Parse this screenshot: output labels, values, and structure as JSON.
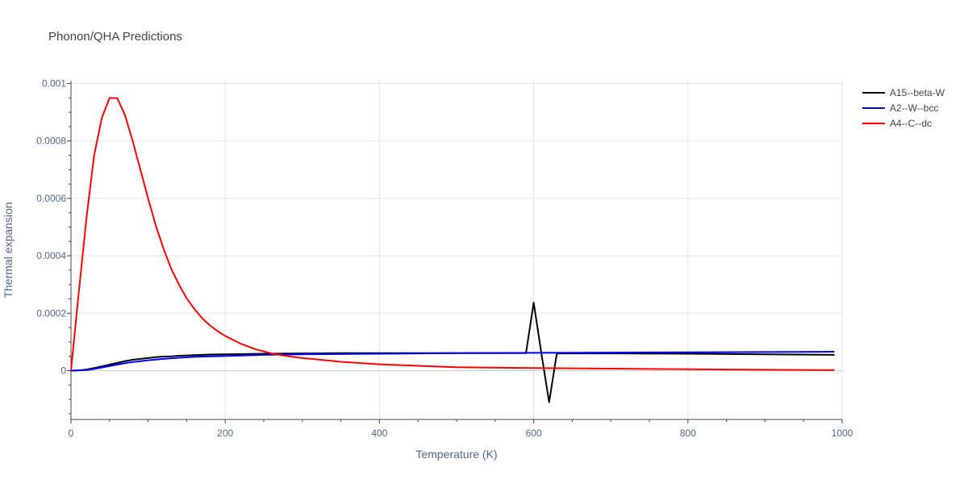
{
  "chart_data": {
    "type": "line",
    "title": "Phonon/QHA Predictions",
    "xlabel": "Temperature (K)",
    "ylabel": "Thermal expansion",
    "xlim": [
      0,
      1000
    ],
    "ylim": [
      -0.00017,
      0.00101
    ],
    "x_ticks": [
      0,
      200,
      400,
      600,
      800,
      1000
    ],
    "x_tick_labels": [
      "0",
      "200",
      "400",
      "600",
      "800",
      "1000"
    ],
    "y_ticks": [
      0,
      0.0002,
      0.0004,
      0.0006,
      0.0008,
      0.001
    ],
    "y_tick_labels": [
      "0",
      "0.0002",
      "0.0004",
      "0.0006",
      "0.0008",
      "0.001"
    ],
    "grid": true,
    "legend_position": "top-right",
    "series": [
      {
        "name": "A15--beta-W",
        "color": "#000000",
        "x": [
          0,
          10,
          20,
          30,
          40,
          50,
          60,
          70,
          80,
          90,
          100,
          110,
          120,
          130,
          140,
          150,
          160,
          170,
          180,
          200,
          250,
          300,
          350,
          400,
          450,
          500,
          550,
          590,
          600,
          610,
          620,
          630,
          640,
          650,
          700,
          800,
          900,
          990
        ],
        "y": [
          0,
          1e-06,
          4e-06,
          9e-06,
          1.5e-05,
          2.1e-05,
          2.7e-05,
          3.3e-05,
          3.8e-05,
          4.1e-05,
          4.4e-05,
          4.7e-05,
          4.9e-05,
          5e-05,
          5.2e-05,
          5.3e-05,
          5.4e-05,
          5.5e-05,
          5.6e-05,
          5.7e-05,
          5.9e-05,
          6e-05,
          6.1e-05,
          6.1e-05,
          6.1e-05,
          6.1e-05,
          6.1e-05,
          6.1e-05,
          0.000237,
          6e-05,
          -0.00011,
          6e-05,
          6e-05,
          6e-05,
          6e-05,
          5.9e-05,
          5.7e-05,
          5.5e-05
        ]
      },
      {
        "name": "A2--W--bcc",
        "color": "#0000ff",
        "x": [
          0,
          10,
          20,
          30,
          40,
          50,
          60,
          70,
          80,
          90,
          100,
          120,
          140,
          160,
          180,
          200,
          250,
          300,
          350,
          400,
          500,
          600,
          700,
          800,
          900,
          990
        ],
        "y": [
          0,
          1e-06,
          2e-06,
          6e-06,
          1.1e-05,
          1.6e-05,
          2.1e-05,
          2.6e-05,
          3e-05,
          3.3e-05,
          3.6e-05,
          4.1e-05,
          4.5e-05,
          4.8e-05,
          5e-05,
          5.1e-05,
          5.5e-05,
          5.7e-05,
          5.8e-05,
          5.9e-05,
          6.1e-05,
          6.2e-05,
          6.3e-05,
          6.4e-05,
          6.5e-05,
          6.6e-05
        ]
      },
      {
        "name": "A4--C--dc",
        "color": "#ff0000",
        "x": [
          0,
          10,
          20,
          30,
          40,
          50,
          60,
          70,
          80,
          90,
          100,
          110,
          120,
          130,
          140,
          150,
          160,
          170,
          180,
          190,
          200,
          220,
          240,
          260,
          280,
          300,
          350,
          400,
          450,
          500,
          600,
          700,
          800,
          900,
          990
        ],
        "y": [
          0,
          0.00027,
          0.00053,
          0.00075,
          0.00088,
          0.00095,
          0.000949,
          0.00089,
          0.0008,
          0.0007,
          0.0006,
          0.000505,
          0.000425,
          0.000355,
          0.0003,
          0.000252,
          0.000215,
          0.000183,
          0.000158,
          0.000138,
          0.000121,
          9.4e-05,
          7.4e-05,
          6e-05,
          5.1e-05,
          4.4e-05,
          3.1e-05,
          2.2e-05,
          1.7e-05,
          1.2e-05,
          9e-06,
          7e-06,
          5e-06,
          3e-06,
          2e-06
        ]
      }
    ]
  }
}
